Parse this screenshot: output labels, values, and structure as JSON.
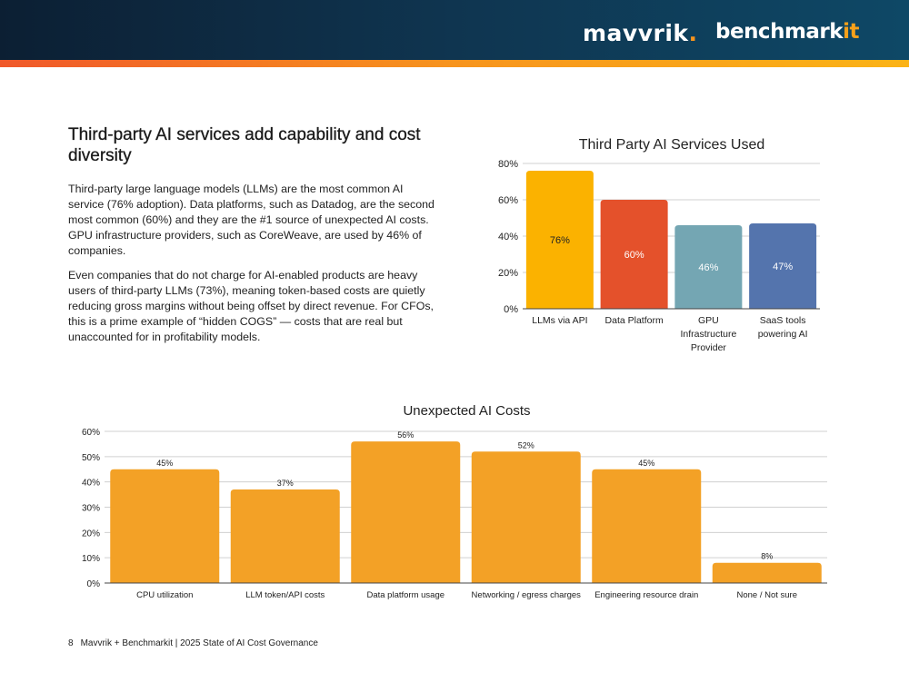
{
  "header": {
    "logo_left": "mavvrik",
    "logo_left_dot": ".",
    "logo_right": "benchmark",
    "logo_right_accent": "it"
  },
  "section": {
    "title": "Third-party AI services add capability and cost diversity",
    "paragraphs": [
      "Third-party large language models (LLMs) are the most common AI service (76% adoption). Data platforms, such as Datadog, are the second most common (60%) and they are the #1 source of unexpected AI costs. GPU infrastructure providers, such as CoreWeave, are used by 46% of companies.",
      "Even companies that do not charge for AI-enabled products are heavy users of third-party LLMs (73%), meaning token-based costs are quietly reducing gross margins without being offset by direct revenue. For CFOs, this is a prime example of “hidden COGS” — costs that are real but unaccounted for in profitability models."
    ]
  },
  "chart_data": [
    {
      "type": "bar",
      "title": "Third Party AI Services Used",
      "categories": [
        "LLMs via API",
        "Data Platform",
        "GPU Infrastructure Provider",
        "SaaS tools powering AI"
      ],
      "category_lines": [
        [
          "LLMs via API"
        ],
        [
          "Data Platform"
        ],
        [
          "GPU",
          "Infrastructure",
          "Provider"
        ],
        [
          "SaaS tools",
          "powering AI"
        ]
      ],
      "values": [
        76,
        60,
        46,
        47
      ],
      "data_labels": [
        "76%",
        "60%",
        "46%",
        "47%"
      ],
      "colors": [
        "#fbb200",
        "#e4512b",
        "#74a6b3",
        "#5474ad"
      ],
      "label_colors": [
        "#222222",
        "#ffffff",
        "#ffffff",
        "#ffffff"
      ],
      "ylim": [
        0,
        80
      ],
      "yticks": [
        "0%",
        "20%",
        "40%",
        "60%",
        "80%"
      ],
      "grid": true,
      "xlabel": "",
      "ylabel": ""
    },
    {
      "type": "bar",
      "title": "Unexpected AI Costs",
      "categories": [
        "CPU utilization",
        "LLM token/API costs",
        "Data platform usage",
        "Networking / egress charges",
        "Engineering resource drain",
        "None / Not sure"
      ],
      "values": [
        45,
        37,
        56,
        52,
        45,
        8
      ],
      "data_labels": [
        "45%",
        "37%",
        "56%",
        "52%",
        "45%",
        "8%"
      ],
      "color": "#f3a126",
      "ylim": [
        0,
        60
      ],
      "yticks": [
        "0%",
        "10%",
        "20%",
        "30%",
        "40%",
        "50%",
        "60%"
      ],
      "grid": true,
      "xlabel": "",
      "ylabel": ""
    }
  ],
  "footer": {
    "page_number": "8",
    "text": "Mavvrik + Benchmarkit | 2025 State of AI Cost Governance"
  }
}
